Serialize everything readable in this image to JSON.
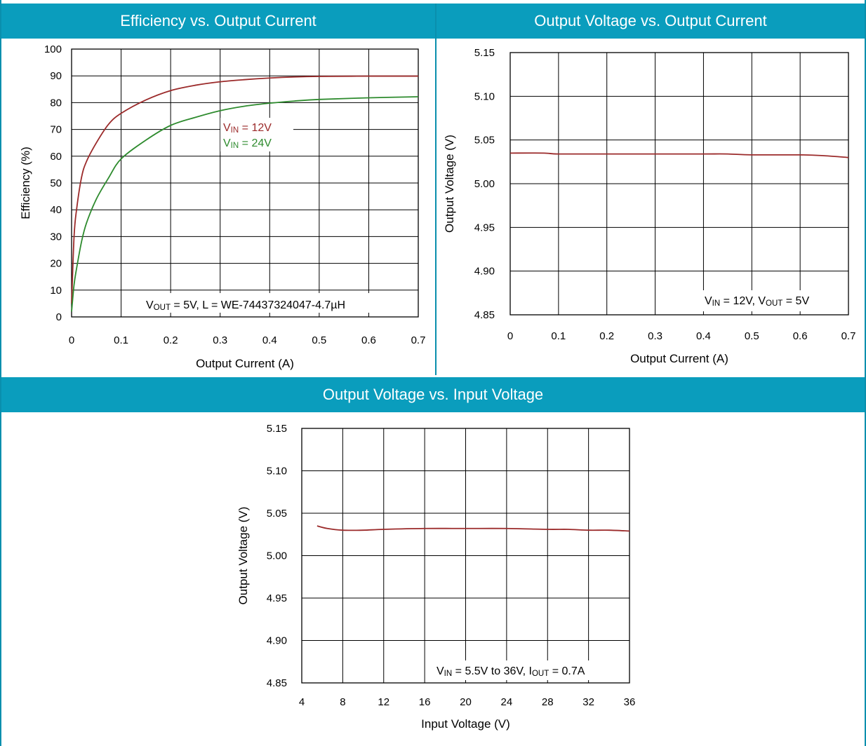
{
  "colors": {
    "header_bg": "#0a9dbd",
    "header_text": "#ffffff",
    "vin12": "#9b2a2a",
    "vin24": "#2e8b2e",
    "grid": "#000000"
  },
  "panels": {
    "eff_title": "Efficiency vs. Output Current",
    "vout_iout_title": "Output Voltage vs. Output Current",
    "vout_vin_title": "Output Voltage vs. Input Voltage"
  },
  "chart_data": [
    {
      "type": "line",
      "title": "Efficiency vs. Output Current",
      "xlabel": "Output Current (A)",
      "ylabel": "Efficiency (%)",
      "xlim": [
        0,
        0.7
      ],
      "ylim": [
        0,
        100
      ],
      "xticks": [
        "0",
        "0.1",
        "0.2",
        "0.3",
        "0.4",
        "0.5",
        "0.6",
        "0.7"
      ],
      "yticks": [
        "0",
        "10",
        "20",
        "30",
        "40",
        "50",
        "60",
        "70",
        "80",
        "90",
        "100"
      ],
      "grid": true,
      "annotation": {
        "main": "V",
        "sub": "OUT",
        "rest": " = 5V, L = WE-74437324047-4.7µH"
      },
      "legend": [
        {
          "main": "V",
          "sub": "IN",
          "rest": " = 12V",
          "color": "#9b2a2a"
        },
        {
          "main": "V",
          "sub": "IN",
          "rest": " = 24V",
          "color": "#2e8b2e"
        }
      ],
      "series": [
        {
          "key": "vin12",
          "color": "#9b2a2a",
          "x": [
            0,
            0.005,
            0.01,
            0.02,
            0.03,
            0.05,
            0.075,
            0.1,
            0.15,
            0.2,
            0.25,
            0.3,
            0.35,
            0.4,
            0.45,
            0.5,
            0.6,
            0.7
          ],
          "y": [
            5,
            30,
            40,
            52,
            58,
            65,
            72,
            76,
            81,
            84.5,
            86.5,
            87.8,
            88.6,
            89.2,
            89.6,
            89.8,
            89.9,
            89.9
          ]
        },
        {
          "key": "vin24",
          "color": "#2e8b2e",
          "x": [
            0,
            0.005,
            0.01,
            0.02,
            0.03,
            0.05,
            0.075,
            0.1,
            0.15,
            0.2,
            0.25,
            0.3,
            0.35,
            0.4,
            0.45,
            0.5,
            0.6,
            0.7
          ],
          "y": [
            2,
            12,
            18,
            28,
            35,
            44,
            52,
            59,
            66,
            71.5,
            74.5,
            77,
            78.7,
            79.8,
            80.6,
            81.2,
            81.8,
            82.2
          ]
        }
      ]
    },
    {
      "type": "line",
      "title": "Output Voltage vs. Output Current",
      "xlabel": "Output Current (A)",
      "ylabel": "Output Voltage (V)",
      "xlim": [
        0,
        0.7
      ],
      "ylim": [
        4.85,
        5.15
      ],
      "xticks": [
        "0",
        "0.1",
        "0.2",
        "0.3",
        "0.4",
        "0.5",
        "0.6",
        "0.7"
      ],
      "yticks": [
        "4.85",
        "4.90",
        "4.95",
        "5.00",
        "5.05",
        "5.10",
        "5.15"
      ],
      "grid": true,
      "annotation_parts": [
        {
          "main": "V",
          "sub": "IN",
          "rest": " = 12V, "
        },
        {
          "main": "V",
          "sub": "OUT",
          "rest": " = 5V"
        }
      ],
      "series": [
        {
          "key": "vout_iout",
          "color": "#9b2a2a",
          "x": [
            0,
            0.07,
            0.1,
            0.2,
            0.3,
            0.4,
            0.45,
            0.5,
            0.6,
            0.65,
            0.7
          ],
          "y": [
            5.035,
            5.035,
            5.034,
            5.034,
            5.034,
            5.034,
            5.034,
            5.033,
            5.033,
            5.032,
            5.03
          ]
        }
      ]
    },
    {
      "type": "line",
      "title": "Output Voltage vs. Input Voltage",
      "xlabel": "Input Voltage (V)",
      "ylabel": "Output Voltage (V)",
      "xlim": [
        4,
        36
      ],
      "ylim": [
        4.85,
        5.15
      ],
      "xticks": [
        "4",
        "8",
        "12",
        "16",
        "20",
        "24",
        "28",
        "32",
        "36"
      ],
      "yticks": [
        "4.85",
        "4.90",
        "4.95",
        "5.00",
        "5.05",
        "5.10",
        "5.15"
      ],
      "grid": true,
      "annotation_parts": [
        {
          "main": "V",
          "sub": "IN",
          "rest": " = 5.5V to 36V, "
        },
        {
          "main": "I",
          "sub": "OUT",
          "rest": " = 0.7A"
        }
      ],
      "series": [
        {
          "key": "vout_vin",
          "color": "#9b2a2a",
          "x": [
            5.5,
            6.5,
            8,
            10,
            12,
            16,
            20,
            24,
            28,
            30,
            32,
            34,
            36
          ],
          "y": [
            5.035,
            5.032,
            5.03,
            5.03,
            5.031,
            5.032,
            5.032,
            5.032,
            5.031,
            5.031,
            5.03,
            5.03,
            5.029
          ]
        }
      ]
    }
  ]
}
